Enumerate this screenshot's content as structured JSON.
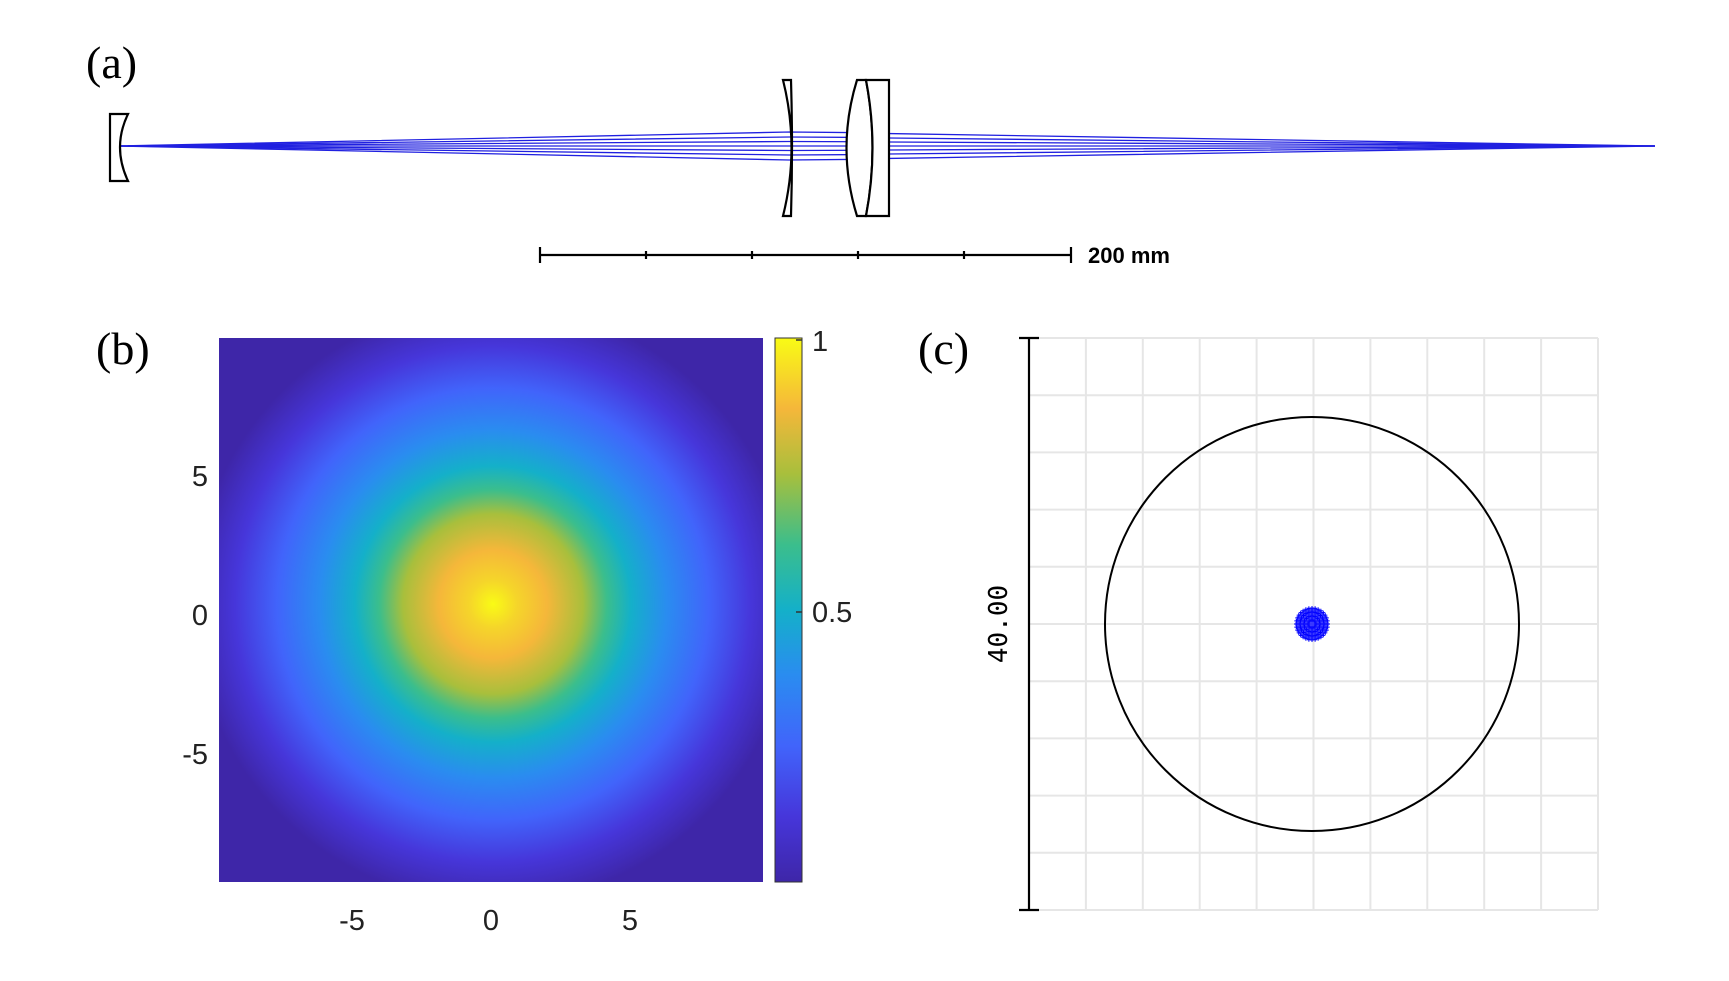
{
  "panels": {
    "a": {
      "label": "(a)",
      "scale_bar": {
        "label": "200 mm",
        "length_mm": 200,
        "divisions": 5
      }
    },
    "b": {
      "label": "(b)",
      "x_ticks": [
        "-5",
        "0",
        "5"
      ],
      "y_ticks": [
        "5",
        "0",
        "-5"
      ],
      "colorbar_ticks": [
        "1",
        "0.5"
      ]
    },
    "c": {
      "label": "(c)",
      "scale_label": "40.00",
      "grid_divisions": 10
    }
  },
  "colors": {
    "rays": "#2020e0",
    "spot": "#1a1aff",
    "grid": "#e6e6e6",
    "lens": "#000000"
  },
  "chart_data": {
    "type": "heatmap",
    "title": "",
    "xlabel": "",
    "ylabel": "",
    "xlim": [
      -9.5,
      10
    ],
    "ylim": [
      -9.5,
      10
    ],
    "x_ticks": [
      -5,
      0,
      5
    ],
    "y_ticks": [
      -5,
      0,
      5
    ],
    "colorbar": {
      "min": 0,
      "max": 1,
      "ticks": [
        0.5,
        1
      ],
      "colormap": "parula"
    },
    "distribution": "gaussian",
    "peak_value": 1,
    "peak_center": [
      0,
      0
    ],
    "value_at_radius_3_5": 0.5
  }
}
